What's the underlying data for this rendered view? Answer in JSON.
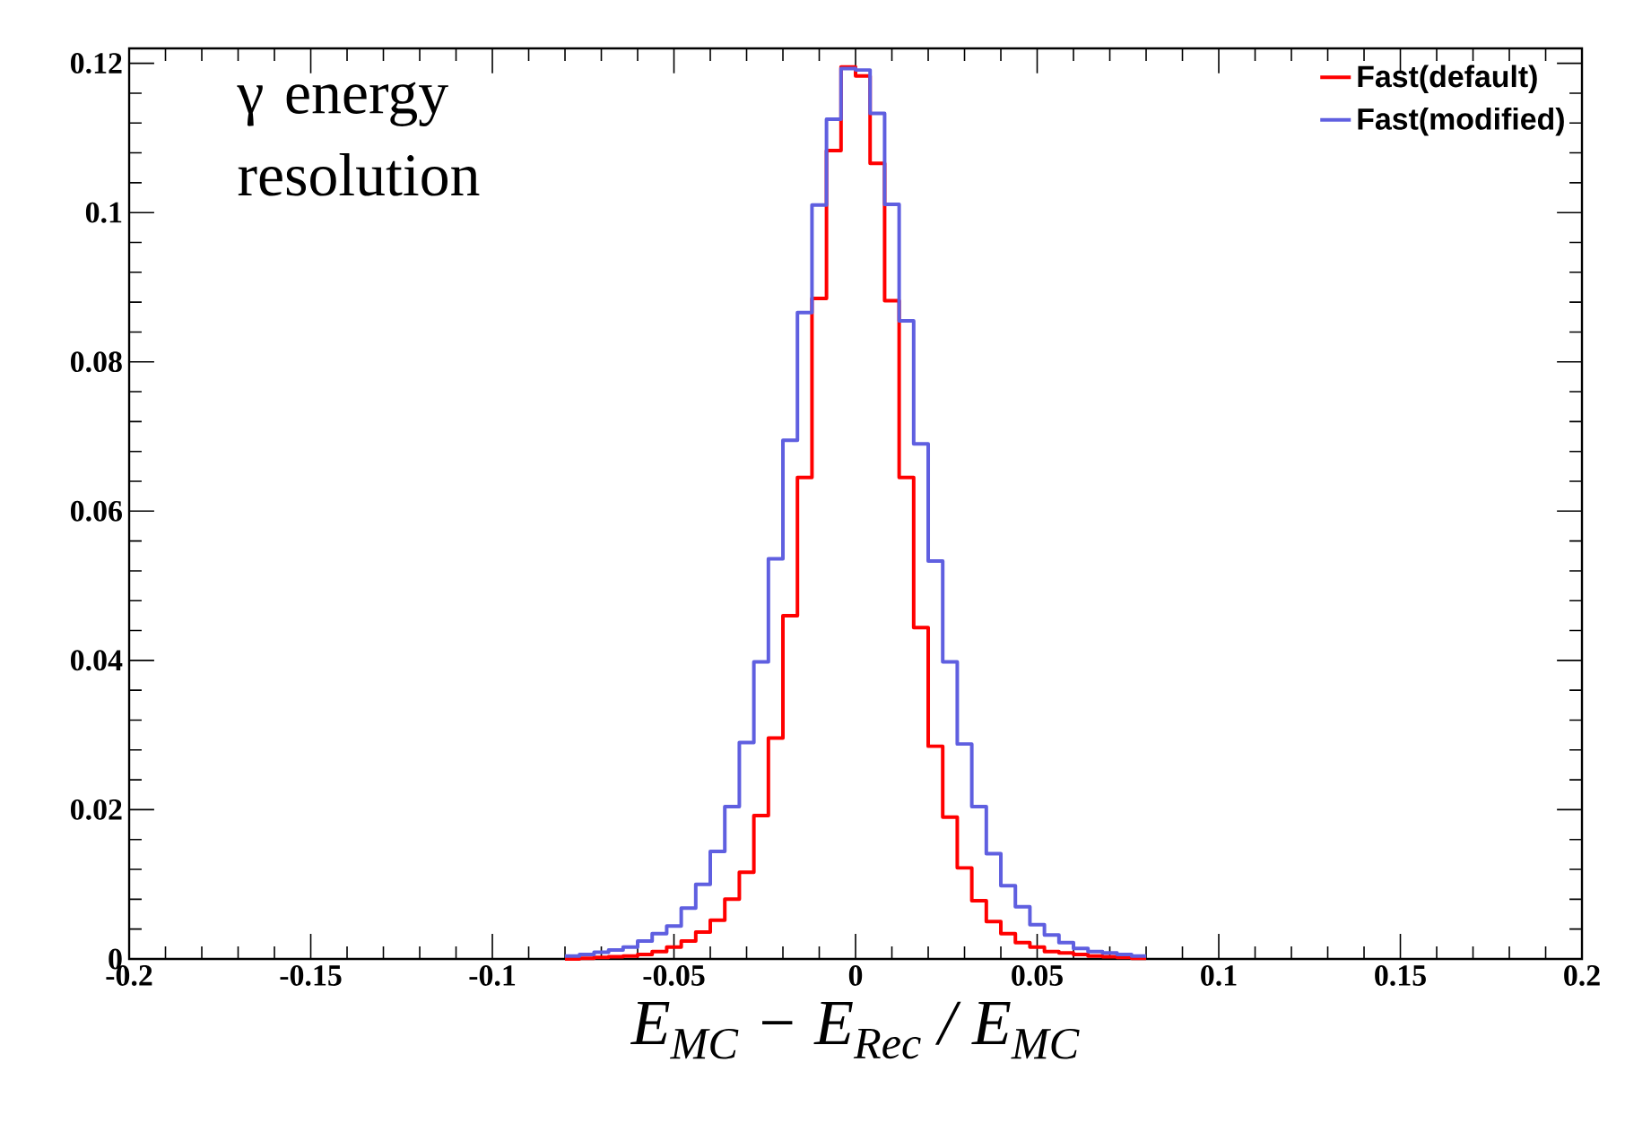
{
  "chart_data": {
    "type": "histogram",
    "title": "γ energy resolution",
    "xlabel": "E$_{MC}$ − E$_{Rec}$ / E$_{MC}$",
    "bins": [
      -0.08,
      -0.076,
      -0.072,
      -0.068,
      -0.064,
      -0.06,
      -0.056,
      -0.052,
      -0.048,
      -0.044,
      -0.04,
      -0.036,
      -0.032,
      -0.028,
      -0.024,
      -0.02,
      -0.016,
      -0.012,
      -0.008,
      -0.004,
      0,
      0.004,
      0.008,
      0.012,
      0.016,
      0.02,
      0.024,
      0.028,
      0.032,
      0.036,
      0.04,
      0.044,
      0.048,
      0.052,
      0.056,
      0.06,
      0.064,
      0.068,
      0.072,
      0.076,
      0.08
    ],
    "series": [
      {
        "name": "Fast(default)",
        "color": "#ff0000",
        "values": [
          0,
          0.0001,
          0.0002,
          0.0003,
          0.0004,
          0.0006,
          0.001,
          0.0016,
          0.0024,
          0.0036,
          0.0052,
          0.008,
          0.0116,
          0.0192,
          0.0296,
          0.046,
          0.0645,
          0.0885,
          0.1083,
          0.1195,
          0.1183,
          0.1066,
          0.0882,
          0.0645,
          0.0444,
          0.0285,
          0.019,
          0.0122,
          0.0078,
          0.005,
          0.0034,
          0.0022,
          0.0016,
          0.001,
          0.0008,
          0.0006,
          0.0004,
          0.0003,
          0.0002,
          0.0001
        ]
      },
      {
        "name": "Fast(modified)",
        "color": "#5f5fe0",
        "values": [
          0.0004,
          0.0006,
          0.0009,
          0.0012,
          0.0016,
          0.0024,
          0.0034,
          0.0044,
          0.0068,
          0.01,
          0.0144,
          0.0204,
          0.029,
          0.0398,
          0.0536,
          0.0695,
          0.0866,
          0.101,
          0.1125,
          0.1193,
          0.1191,
          0.1133,
          0.1011,
          0.0855,
          0.069,
          0.0533,
          0.0398,
          0.0288,
          0.0204,
          0.0141,
          0.0098,
          0.007,
          0.0046,
          0.0032,
          0.0022,
          0.0014,
          0.001,
          0.0008,
          0.0006,
          0.0004
        ]
      }
    ],
    "xlim": [
      -0.2,
      0.2
    ],
    "ylim": [
      0,
      0.122
    ],
    "xticks": [
      -0.2,
      -0.15,
      -0.1,
      -0.05,
      0,
      0.05,
      0.1,
      0.15,
      0.2
    ],
    "yticks": [
      0,
      0.02,
      0.04,
      0.06,
      0.08,
      0.1,
      0.12
    ],
    "legend": "top right"
  }
}
